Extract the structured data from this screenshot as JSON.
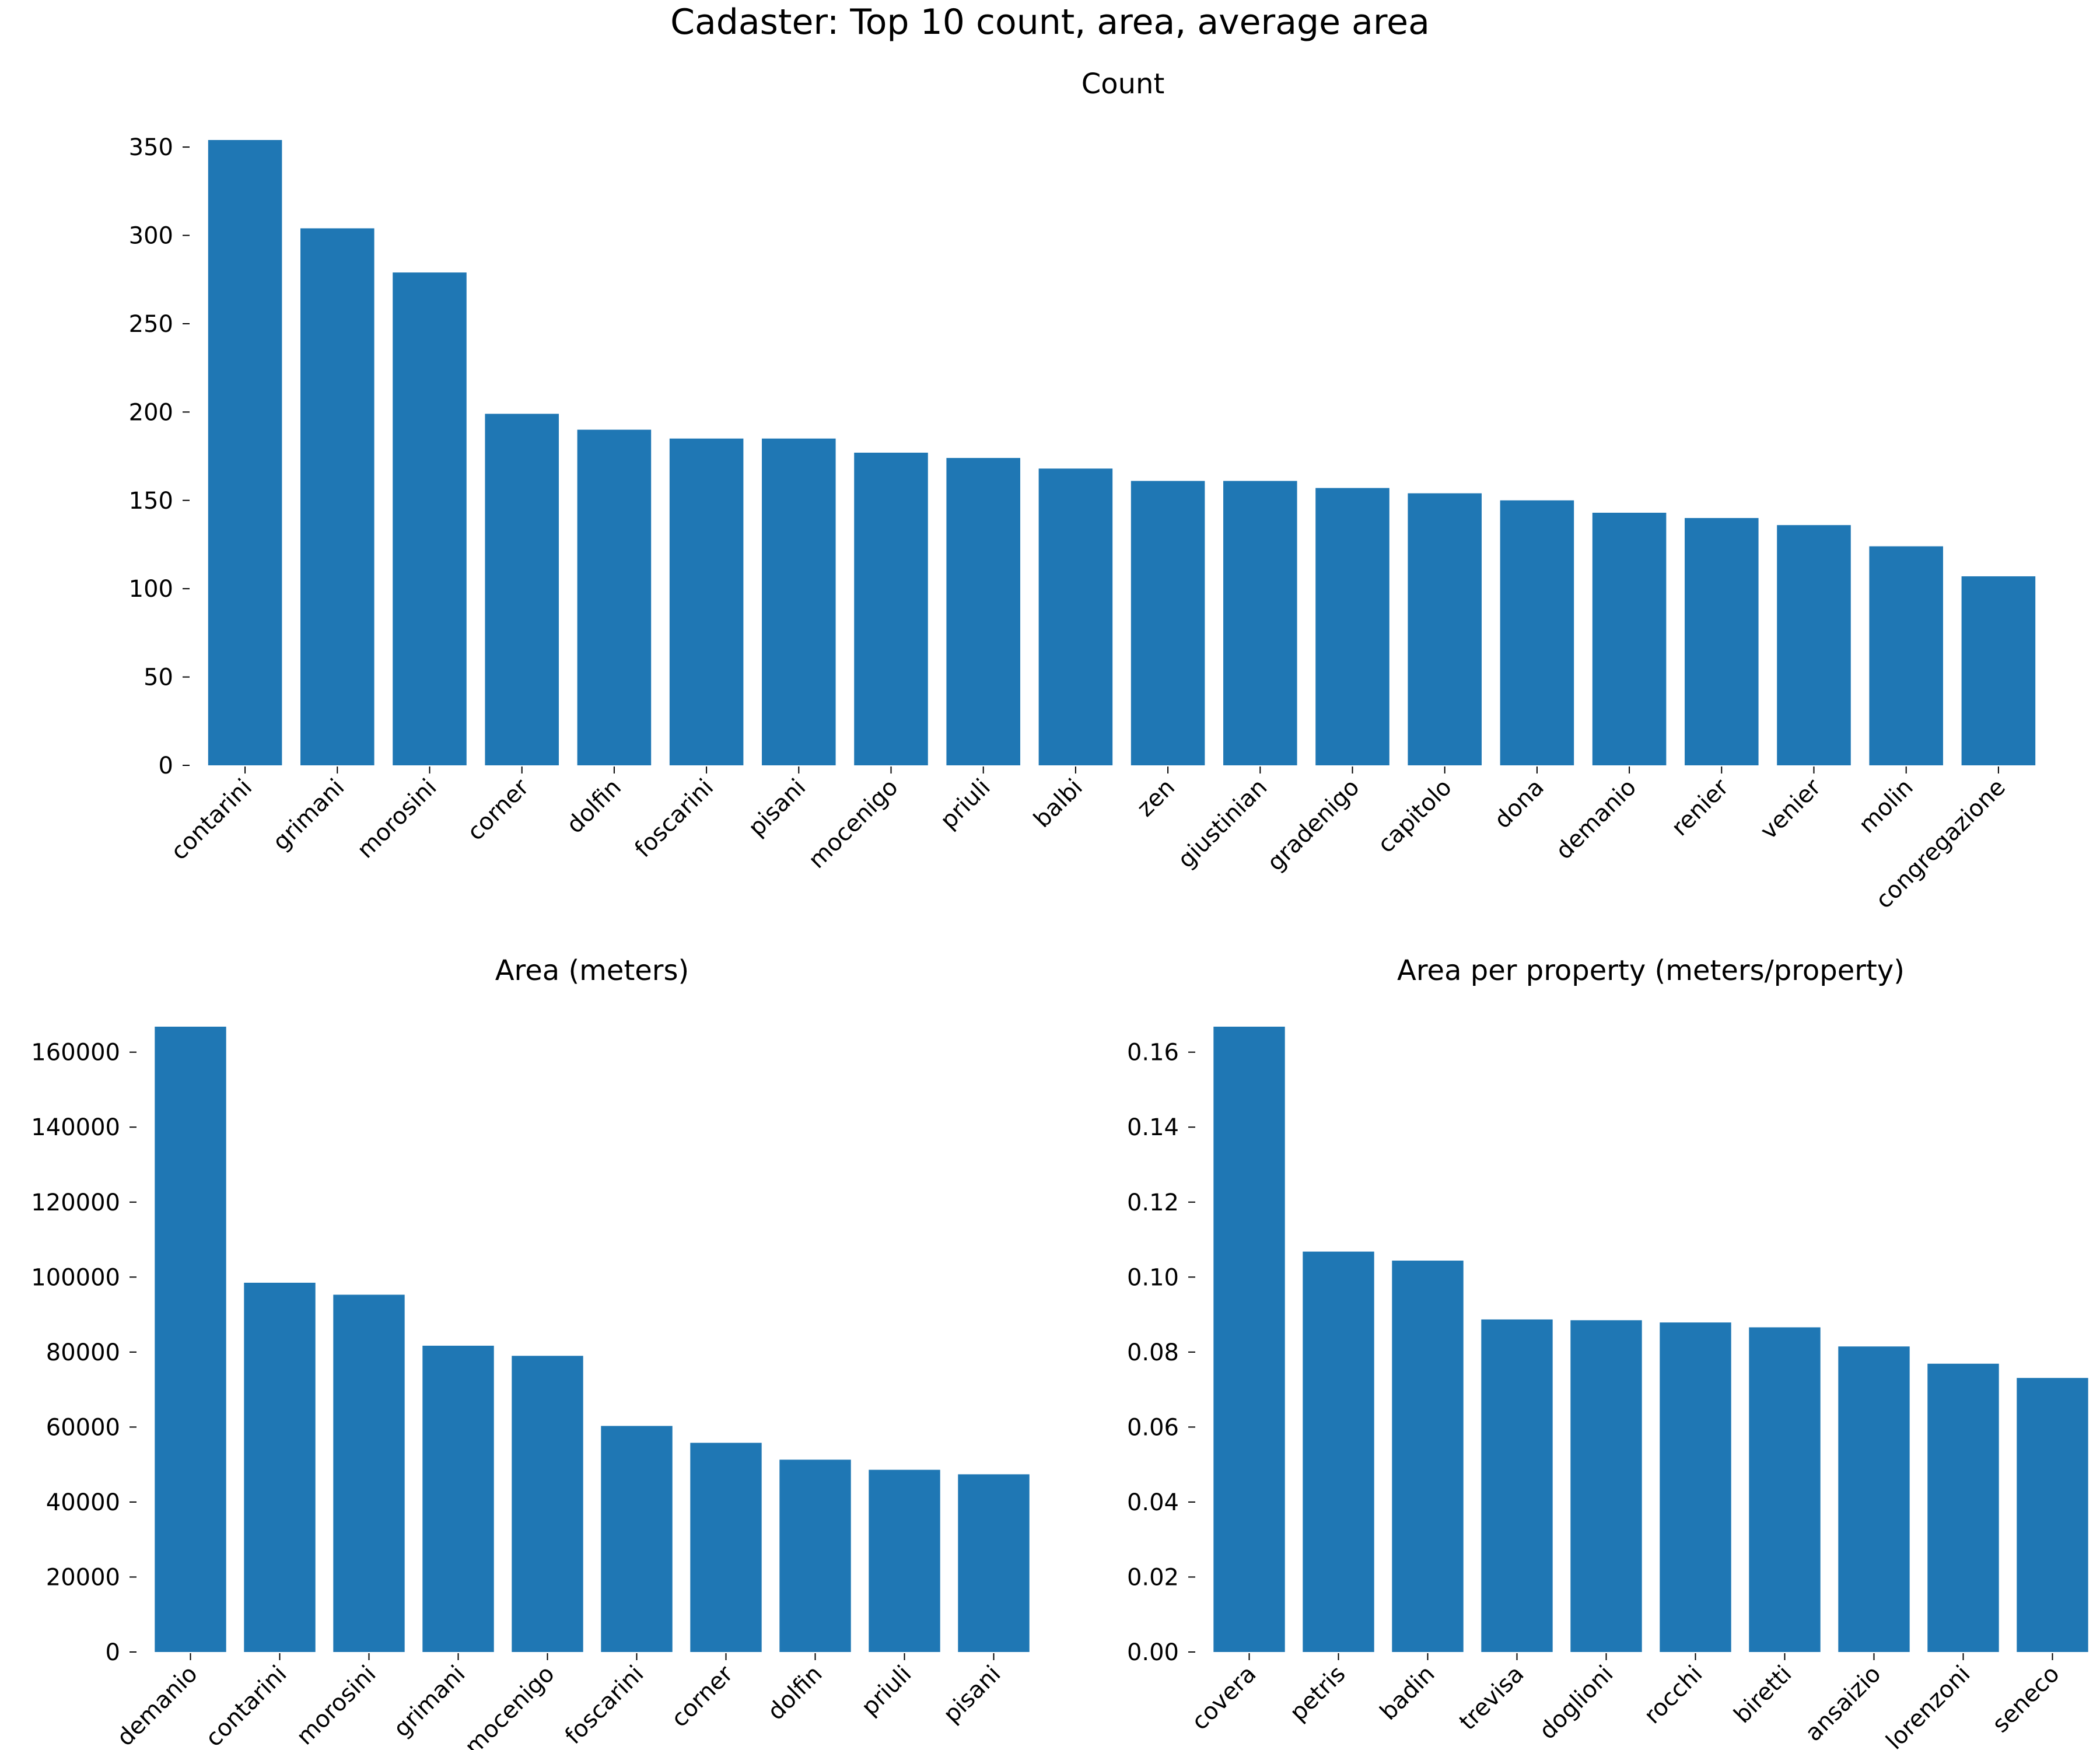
{
  "figure": {
    "title": "Cadaster: Top 10 count, area, average area",
    "bar_color": "#1f77b4"
  },
  "chart_data": [
    {
      "type": "bar",
      "title": "Count",
      "xlabel": "",
      "ylabel": "",
      "ylim": [
        0,
        354
      ],
      "yticks": [
        0,
        50,
        100,
        150,
        200,
        250,
        300,
        350
      ],
      "grid": false,
      "categories": [
        "contarini",
        "grimani",
        "morosini",
        "corner",
        "dolfin",
        "foscarini",
        "pisani",
        "mocenigo",
        "priuli",
        "balbi",
        "zen",
        "giustinian",
        "gradenigo",
        "capitolo",
        "dona",
        "demanio",
        "renier",
        "venier",
        "molin",
        "congregazione"
      ],
      "values": [
        354,
        304,
        279,
        199,
        190,
        185,
        185,
        177,
        174,
        168,
        161,
        161,
        157,
        154,
        150,
        143,
        140,
        136,
        124,
        107
      ]
    },
    {
      "type": "bar",
      "title": "Area (meters)",
      "xlabel": "",
      "ylabel": "",
      "ylim": [
        0,
        166800
      ],
      "yticks": [
        0,
        20000,
        40000,
        60000,
        80000,
        100000,
        120000,
        140000,
        160000
      ],
      "grid": false,
      "categories": [
        "demanio",
        "contarini",
        "morosini",
        "grimani",
        "mocenigo",
        "foscarini",
        "corner",
        "dolfin",
        "priuli",
        "pisani"
      ],
      "values": [
        166800,
        98500,
        95300,
        81700,
        79000,
        60300,
        55800,
        51300,
        48600,
        47400
      ]
    },
    {
      "type": "bar",
      "title": "Area per property (meters/property)",
      "xlabel": "",
      "ylabel": "",
      "ylim": [
        0,
        0.1668
      ],
      "yticks": [
        "0.00",
        "0.02",
        "0.04",
        "0.06",
        "0.08",
        "0.10",
        "0.12",
        "0.14",
        "0.16"
      ],
      "grid": false,
      "categories": [
        "covera",
        "petris",
        "badin",
        "trevisa",
        "doglioni",
        "rocchi",
        "biretti",
        "ansaizio",
        "lorenzoni",
        "seneco"
      ],
      "values": [
        0.1668,
        0.1068,
        0.1044,
        0.0887,
        0.0885,
        0.0879,
        0.0866,
        0.0815,
        0.0769,
        0.0731
      ]
    }
  ]
}
